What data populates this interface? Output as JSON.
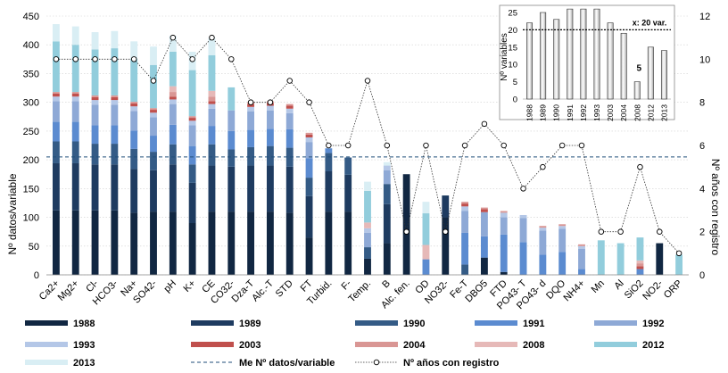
{
  "chart_data": [
    {
      "type": "bar",
      "subtype": "stacked-bar-with-line",
      "title": "",
      "ylabel": "Nº datos/variable",
      "y2label": "Nº años con registro",
      "ylim": [
        0,
        450
      ],
      "yticks": [
        0,
        50,
        100,
        150,
        200,
        250,
        300,
        350,
        400,
        450
      ],
      "y2lim": [
        0,
        12
      ],
      "y2ticks": [
        0,
        2,
        4,
        6,
        8,
        10,
        12
      ],
      "categories": [
        "Ca2+",
        "Mg2+",
        "Cl-",
        "HCO3-",
        "Na+",
        "SO42-",
        "pH",
        "K+",
        "CE",
        "CO32-",
        "Dza-T",
        "Alc.-T",
        "STD",
        "FT",
        "Turbid.",
        "F-",
        "Temp.",
        "B",
        "Alc. fen.",
        "OD",
        "NO32-",
        "Fe-T",
        "DBO5",
        "FTD",
        "PO43- T",
        "PO43- d",
        "DQO",
        "NH4+",
        "Mn",
        "Al",
        "SiO2",
        "NO2-",
        "ORP"
      ],
      "series": [
        {
          "name": "1988",
          "color": "#112742",
          "values": [
            112,
            112,
            112,
            112,
            108,
            110,
            110,
            90,
            110,
            110,
            110,
            110,
            108,
            65,
            110,
            110,
            28,
            55,
            175,
            0,
            100,
            0,
            30,
            5,
            0,
            0,
            0,
            0,
            0,
            0,
            0,
            55,
            0
          ]
        },
        {
          "name": "1989",
          "color": "#1e3b60",
          "values": [
            82,
            82,
            80,
            80,
            76,
            72,
            82,
            70,
            80,
            78,
            80,
            80,
            80,
            72,
            70,
            64,
            0,
            68,
            0,
            0,
            38,
            0,
            0,
            0,
            0,
            0,
            0,
            0,
            0,
            0,
            0,
            0,
            0
          ]
        },
        {
          "name": "1990",
          "color": "#345b86",
          "values": [
            38,
            38,
            36,
            36,
            35,
            32,
            35,
            32,
            37,
            30,
            32,
            34,
            33,
            32,
            32,
            30,
            20,
            35,
            0,
            0,
            0,
            18,
            0,
            0,
            0,
            0,
            0,
            0,
            0,
            0,
            0,
            0,
            0
          ]
        },
        {
          "name": "1991",
          "color": "#5b8bd0",
          "values": [
            34,
            34,
            32,
            32,
            32,
            28,
            34,
            32,
            32,
            32,
            30,
            30,
            32,
            34,
            8,
            0,
            0,
            0,
            0,
            27,
            0,
            55,
            37,
            65,
            57,
            35,
            40,
            10,
            0,
            0,
            10,
            0,
            0
          ]
        },
        {
          "name": "1992",
          "color": "#8ea9d6",
          "values": [
            36,
            36,
            36,
            36,
            34,
            32,
            36,
            36,
            30,
            36,
            32,
            32,
            28,
            28,
            0,
            0,
            25,
            24,
            0,
            0,
            0,
            38,
            42,
            30,
            42,
            42,
            40,
            35,
            0,
            0,
            0,
            0,
            0
          ]
        },
        {
          "name": "1993",
          "color": "#b4c7e7",
          "values": [
            8,
            8,
            8,
            8,
            8,
            8,
            8,
            8,
            8,
            0,
            8,
            8,
            8,
            8,
            0,
            0,
            8,
            8,
            0,
            0,
            0,
            8,
            0,
            8,
            5,
            5,
            5,
            5,
            0,
            0,
            0,
            0,
            0
          ]
        },
        {
          "name": "2003",
          "color": "#c0504d",
          "values": [
            5,
            5,
            5,
            5,
            5,
            5,
            5,
            5,
            5,
            0,
            5,
            5,
            5,
            5,
            0,
            0,
            0,
            0,
            0,
            0,
            0,
            5,
            5,
            0,
            0,
            0,
            0,
            0,
            0,
            0,
            5,
            0,
            0
          ]
        },
        {
          "name": "2004",
          "color": "#d99694",
          "values": [
            3,
            3,
            3,
            3,
            3,
            3,
            8,
            3,
            8,
            0,
            3,
            3,
            3,
            3,
            0,
            0,
            0,
            0,
            0,
            0,
            0,
            3,
            3,
            3,
            0,
            3,
            3,
            3,
            0,
            0,
            5,
            0,
            0
          ]
        },
        {
          "name": "2008",
          "color": "#e6b9b8",
          "values": [
            0,
            0,
            0,
            0,
            0,
            0,
            10,
            0,
            10,
            0,
            0,
            0,
            0,
            0,
            0,
            0,
            10,
            0,
            0,
            25,
            0,
            0,
            0,
            0,
            0,
            0,
            0,
            0,
            0,
            0,
            5,
            0,
            0
          ]
        },
        {
          "name": "2012",
          "color": "#92cddc",
          "values": [
            88,
            82,
            80,
            82,
            75,
            75,
            60,
            80,
            62,
            40,
            0,
            0,
            0,
            0,
            0,
            0,
            55,
            0,
            0,
            55,
            0,
            0,
            0,
            0,
            0,
            0,
            0,
            0,
            60,
            55,
            40,
            0,
            35
          ]
        },
        {
          "name": "2013",
          "color": "#d9eef4",
          "values": [
            30,
            32,
            30,
            30,
            30,
            32,
            28,
            32,
            30,
            0,
            0,
            0,
            0,
            0,
            0,
            0,
            16,
            6,
            0,
            20,
            0,
            0,
            0,
            0,
            0,
            0,
            0,
            0,
            0,
            0,
            0,
            0,
            0
          ]
        }
      ],
      "reference_line": {
        "name": "Me Nº datos/variable",
        "value": 205,
        "color": "#1f4e79"
      },
      "line_series": {
        "name": "Nº años con registro",
        "axis": "y2",
        "values": [
          10,
          10,
          10,
          10,
          10,
          9,
          11,
          10,
          11,
          10,
          8,
          8,
          9,
          8,
          6,
          6,
          9,
          6,
          2,
          6,
          2,
          6,
          7,
          6,
          4,
          5,
          6,
          6,
          2,
          2,
          5,
          2,
          1
        ]
      },
      "legend": {
        "position": "bottom"
      }
    },
    {
      "type": "bar",
      "title": "",
      "ylabel": "Nº variables",
      "ylim": [
        0,
        25
      ],
      "yticks": [
        0,
        5,
        10,
        15,
        20,
        25
      ],
      "categories": [
        "1988",
        "1989",
        "1990",
        "1991",
        "1992",
        "1993",
        "2003",
        "2004",
        "2008",
        "2012",
        "2013"
      ],
      "values": [
        22,
        25,
        23,
        26,
        26,
        26,
        22,
        19,
        5,
        15,
        14
      ],
      "data_labels": [
        {
          "index": 8,
          "text": "5"
        }
      ],
      "mean_line": {
        "value": 20,
        "label": "x: 20 var."
      }
    }
  ]
}
